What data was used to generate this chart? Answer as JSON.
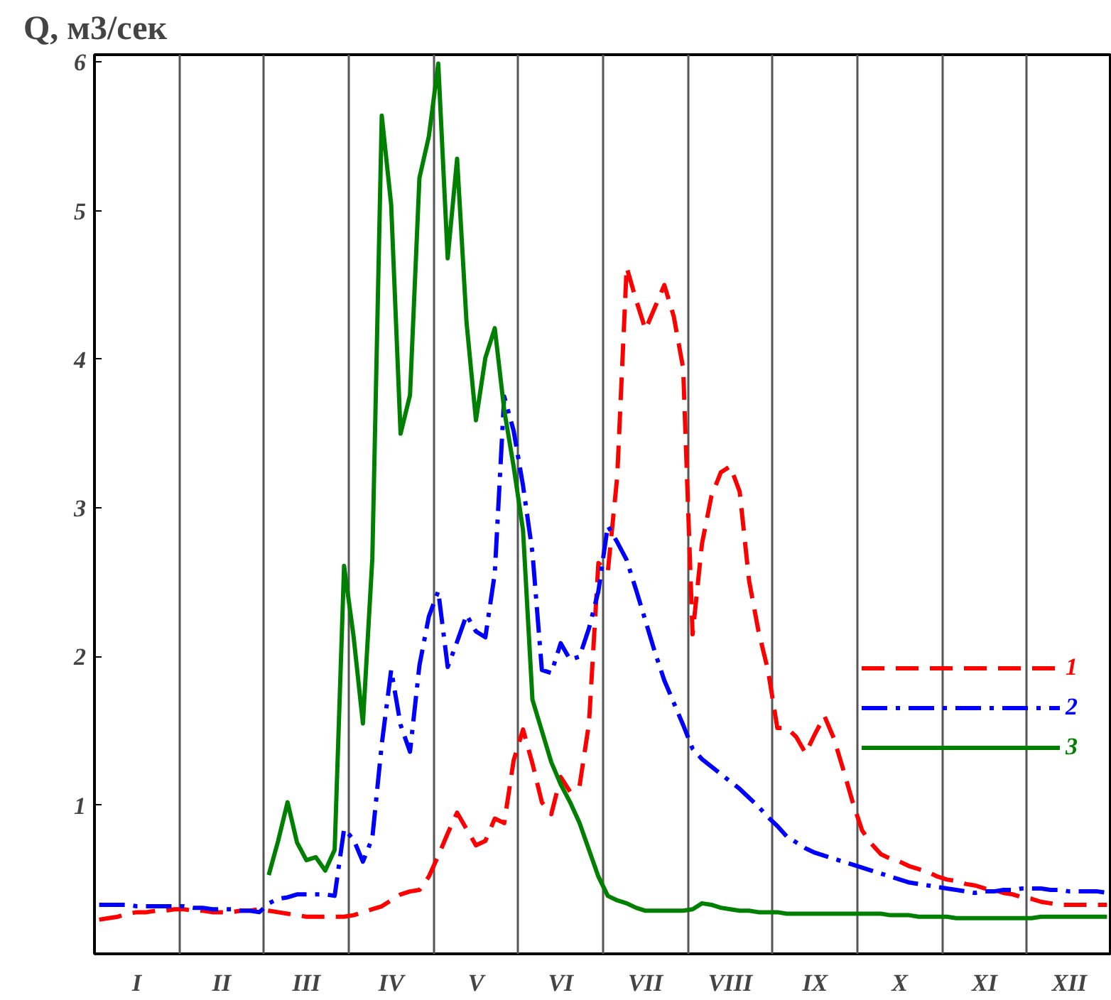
{
  "chart_data": {
    "type": "line",
    "ylabel": "Q, м3/сек",
    "categories": [
      null,
      null,
      null,
      null,
      "I",
      null,
      null,
      null,
      null,
      null,
      null,
      null,
      null,
      "II",
      null,
      null,
      null,
      null,
      null,
      null,
      null,
      null,
      "III",
      null,
      null,
      null,
      null,
      null,
      null,
      null,
      null,
      "IV",
      null,
      null,
      null,
      null,
      null,
      null,
      null,
      null,
      "V",
      null,
      null,
      null,
      null,
      null,
      null,
      null,
      null,
      "VI",
      null,
      null,
      null,
      null,
      null,
      null,
      null,
      null,
      "VII",
      null,
      null,
      null,
      null,
      null,
      null,
      null,
      null,
      "VIII",
      null,
      null,
      null,
      null,
      null,
      null,
      null,
      null,
      "IX",
      null,
      null,
      null,
      null,
      null,
      null,
      null,
      null,
      "X",
      null,
      null,
      null,
      null,
      null,
      null,
      null,
      null,
      "XI",
      null,
      null,
      null,
      null,
      null,
      null,
      null,
      null,
      "XII",
      null,
      null,
      null,
      null
    ],
    "ylim": [
      0,
      6.05
    ],
    "yticks": [
      1,
      2,
      3,
      4,
      5,
      6
    ],
    "grid": "x",
    "legend": "right",
    "series": [
      {
        "name": "1",
        "color": "#ff0000",
        "line_style": "dashed",
        "values": [
          0.23,
          0.24,
          0.25,
          0.27,
          0.28,
          0.28,
          0.29,
          0.29,
          0.3,
          0.3,
          0.29,
          0.29,
          0.28,
          0.28,
          0.28,
          0.29,
          0.29,
          0.3,
          0.29,
          0.28,
          0.27,
          0.26,
          0.25,
          0.25,
          0.25,
          0.25,
          0.25,
          0.26,
          0.28,
          0.3,
          0.32,
          0.36,
          0.4,
          0.42,
          0.43,
          0.52,
          0.66,
          0.81,
          0.95,
          0.84,
          0.73,
          0.76,
          0.91,
          0.88,
          1.3,
          1.51,
          1.28,
          1.02,
          0.94,
          1.19,
          1.09,
          1.13,
          1.55,
          2.63,
          2.57,
          3.21,
          4.62,
          4.4,
          4.2,
          4.35,
          4.5,
          4.29,
          3.94,
          2.15,
          2.76,
          3.08,
          3.24,
          3.28,
          3.11,
          2.51,
          2.17,
          1.91,
          1.52,
          1.52,
          1.46,
          1.35,
          1.48,
          1.6,
          1.45,
          1.24,
          1.02,
          0.83,
          0.74,
          0.67,
          0.64,
          0.62,
          0.59,
          0.57,
          0.55,
          0.52,
          0.5,
          0.49,
          0.47,
          0.46,
          0.44,
          0.43,
          0.41,
          0.4,
          0.38,
          0.37,
          0.35,
          0.34,
          0.33,
          0.33,
          0.33,
          0.33,
          0.33,
          0.33
        ]
      },
      {
        "name": "2",
        "color": "#0000ff",
        "line_style": "dashdot",
        "values": [
          0.33,
          0.33,
          0.33,
          0.33,
          0.32,
          0.32,
          0.32,
          0.32,
          0.32,
          0.32,
          0.31,
          0.31,
          0.3,
          0.3,
          0.3,
          0.29,
          0.29,
          0.28,
          0.34,
          0.37,
          0.38,
          0.4,
          0.4,
          0.4,
          0.4,
          0.39,
          0.84,
          0.77,
          0.62,
          0.78,
          1.41,
          1.91,
          1.54,
          1.36,
          1.94,
          2.27,
          2.44,
          1.93,
          2.1,
          2.28,
          2.17,
          2.13,
          2.56,
          3.75,
          3.52,
          3.15,
          2.7,
          1.91,
          1.89,
          2.09,
          1.98,
          2.0,
          2.19,
          2.44,
          2.88,
          2.77,
          2.65,
          2.45,
          2.24,
          2.03,
          1.84,
          1.69,
          1.54,
          1.38,
          1.31,
          1.26,
          1.21,
          1.16,
          1.11,
          1.05,
          0.99,
          0.92,
          0.86,
          0.79,
          0.75,
          0.71,
          0.68,
          0.66,
          0.64,
          0.62,
          0.6,
          0.58,
          0.56,
          0.54,
          0.52,
          0.5,
          0.48,
          0.47,
          0.46,
          0.45,
          0.44,
          0.43,
          0.42,
          0.41,
          0.42,
          0.42,
          0.43,
          0.43,
          0.44,
          0.44,
          0.44,
          0.43,
          0.43,
          0.42,
          0.42,
          0.42,
          0.42,
          0.41
        ]
      },
      {
        "name": "3",
        "color": "#008000",
        "line_style": "solid",
        "values": [
          null,
          null,
          null,
          null,
          null,
          null,
          null,
          null,
          null,
          null,
          null,
          null,
          null,
          null,
          null,
          null,
          null,
          null,
          0.53,
          0.76,
          1.02,
          0.75,
          0.63,
          0.65,
          0.56,
          0.7,
          2.61,
          2.14,
          1.55,
          2.66,
          5.64,
          5.04,
          3.5,
          3.76,
          5.22,
          5.5,
          5.99,
          4.68,
          5.35,
          4.25,
          3.59,
          4.01,
          4.21,
          3.66,
          3.28,
          2.85,
          1.71,
          1.5,
          1.29,
          1.14,
          1.02,
          0.88,
          0.7,
          0.52,
          0.39,
          0.36,
          0.34,
          0.31,
          0.29,
          0.29,
          0.29,
          0.29,
          0.29,
          0.3,
          0.34,
          0.33,
          0.31,
          0.3,
          0.29,
          0.29,
          0.28,
          0.28,
          0.28,
          0.27,
          0.27,
          0.27,
          0.27,
          0.27,
          0.27,
          0.27,
          0.27,
          0.27,
          0.27,
          0.27,
          0.26,
          0.26,
          0.26,
          0.25,
          0.25,
          0.25,
          0.25,
          0.24,
          0.24,
          0.24,
          0.24,
          0.24,
          0.24,
          0.24,
          0.24,
          0.24,
          0.25,
          0.25,
          0.25,
          0.25,
          0.25,
          0.25,
          0.25,
          0.25
        ]
      }
    ]
  }
}
